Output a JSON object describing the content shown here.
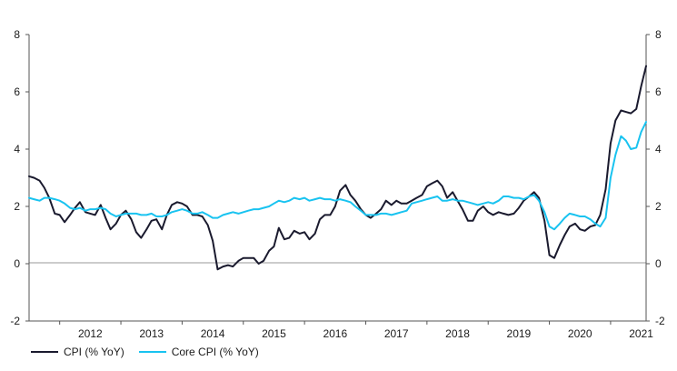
{
  "chart_data": {
    "type": "line",
    "title": "",
    "xlabel": "",
    "ylabel": "",
    "ylim": [
      -2,
      8
    ],
    "xlim": [
      2011.5,
      2021.58
    ],
    "yticks": [
      -2,
      0,
      2,
      4,
      6,
      8
    ],
    "xticks": [
      2012,
      2013,
      2014,
      2015,
      2016,
      2017,
      2018,
      2019,
      2020,
      2021
    ],
    "grid": false,
    "legend_position": "bottom-left",
    "series": [
      {
        "name": "CPI (% YoY)",
        "color": "#1a1a2e",
        "points": [
          [
            2011.5,
            3.05
          ],
          [
            2011.58,
            3.0
          ],
          [
            2011.67,
            2.9
          ],
          [
            2011.75,
            2.65
          ],
          [
            2011.83,
            2.3
          ],
          [
            2011.92,
            1.75
          ],
          [
            2012.0,
            1.7
          ],
          [
            2012.08,
            1.45
          ],
          [
            2012.17,
            1.7
          ],
          [
            2012.25,
            1.95
          ],
          [
            2012.33,
            2.15
          ],
          [
            2012.42,
            1.8
          ],
          [
            2012.5,
            1.75
          ],
          [
            2012.58,
            1.7
          ],
          [
            2012.67,
            2.05
          ],
          [
            2012.75,
            1.6
          ],
          [
            2012.83,
            1.2
          ],
          [
            2012.92,
            1.4
          ],
          [
            2013.0,
            1.7
          ],
          [
            2013.08,
            1.85
          ],
          [
            2013.17,
            1.55
          ],
          [
            2013.25,
            1.1
          ],
          [
            2013.33,
            0.9
          ],
          [
            2013.42,
            1.2
          ],
          [
            2013.5,
            1.5
          ],
          [
            2013.58,
            1.55
          ],
          [
            2013.67,
            1.2
          ],
          [
            2013.75,
            1.7
          ],
          [
            2013.83,
            2.05
          ],
          [
            2013.92,
            2.15
          ],
          [
            2014.0,
            2.1
          ],
          [
            2014.08,
            2.0
          ],
          [
            2014.17,
            1.7
          ],
          [
            2014.25,
            1.7
          ],
          [
            2014.33,
            1.65
          ],
          [
            2014.42,
            1.35
          ],
          [
            2014.5,
            0.8
          ],
          [
            2014.58,
            -0.2
          ],
          [
            2014.67,
            -0.1
          ],
          [
            2014.75,
            -0.05
          ],
          [
            2014.83,
            -0.1
          ],
          [
            2014.92,
            0.1
          ],
          [
            2015.0,
            0.2
          ],
          [
            2015.08,
            0.2
          ],
          [
            2015.17,
            0.2
          ],
          [
            2015.25,
            0.0
          ],
          [
            2015.33,
            0.1
          ],
          [
            2015.42,
            0.45
          ],
          [
            2015.5,
            0.6
          ],
          [
            2015.58,
            1.25
          ],
          [
            2015.67,
            0.85
          ],
          [
            2015.75,
            0.9
          ],
          [
            2015.83,
            1.15
          ],
          [
            2015.92,
            1.05
          ],
          [
            2016.0,
            1.1
          ],
          [
            2016.08,
            0.85
          ],
          [
            2016.17,
            1.05
          ],
          [
            2016.25,
            1.55
          ],
          [
            2016.33,
            1.7
          ],
          [
            2016.42,
            1.7
          ],
          [
            2016.5,
            2.0
          ],
          [
            2016.58,
            2.55
          ],
          [
            2016.67,
            2.75
          ],
          [
            2016.75,
            2.4
          ],
          [
            2016.83,
            2.2
          ],
          [
            2016.92,
            1.9
          ],
          [
            2017.0,
            1.7
          ],
          [
            2017.08,
            1.6
          ],
          [
            2017.17,
            1.75
          ],
          [
            2017.25,
            1.9
          ],
          [
            2017.33,
            2.2
          ],
          [
            2017.42,
            2.05
          ],
          [
            2017.5,
            2.2
          ],
          [
            2017.58,
            2.1
          ],
          [
            2017.67,
            2.1
          ],
          [
            2017.75,
            2.2
          ],
          [
            2017.83,
            2.3
          ],
          [
            2017.92,
            2.4
          ],
          [
            2018.0,
            2.7
          ],
          [
            2018.08,
            2.8
          ],
          [
            2018.17,
            2.9
          ],
          [
            2018.25,
            2.7
          ],
          [
            2018.33,
            2.3
          ],
          [
            2018.42,
            2.5
          ],
          [
            2018.5,
            2.2
          ],
          [
            2018.58,
            1.9
          ],
          [
            2018.67,
            1.5
          ],
          [
            2018.75,
            1.5
          ],
          [
            2018.83,
            1.85
          ],
          [
            2018.92,
            2.0
          ],
          [
            2019.0,
            1.8
          ],
          [
            2019.08,
            1.7
          ],
          [
            2019.17,
            1.8
          ],
          [
            2019.25,
            1.75
          ],
          [
            2019.33,
            1.7
          ],
          [
            2019.42,
            1.75
          ],
          [
            2019.5,
            1.95
          ],
          [
            2019.58,
            2.2
          ],
          [
            2019.67,
            2.35
          ],
          [
            2019.75,
            2.5
          ],
          [
            2019.83,
            2.3
          ],
          [
            2019.92,
            1.5
          ],
          [
            2020.0,
            0.3
          ],
          [
            2020.08,
            0.2
          ],
          [
            2020.17,
            0.65
          ],
          [
            2020.25,
            1.0
          ],
          [
            2020.33,
            1.3
          ],
          [
            2020.42,
            1.4
          ],
          [
            2020.5,
            1.2
          ],
          [
            2020.58,
            1.15
          ],
          [
            2020.67,
            1.3
          ],
          [
            2020.75,
            1.35
          ],
          [
            2020.83,
            1.7
          ],
          [
            2020.92,
            2.6
          ],
          [
            2021.0,
            4.2
          ],
          [
            2021.08,
            5.0
          ],
          [
            2021.17,
            5.35
          ],
          [
            2021.25,
            5.3
          ],
          [
            2021.33,
            5.25
          ],
          [
            2021.42,
            5.4
          ],
          [
            2021.5,
            6.2
          ],
          [
            2021.58,
            6.9
          ]
        ]
      },
      {
        "name": "Core CPI (% YoY)",
        "color": "#19c3f0",
        "points": [
          [
            2011.5,
            2.3
          ],
          [
            2011.58,
            2.25
          ],
          [
            2011.67,
            2.2
          ],
          [
            2011.75,
            2.3
          ],
          [
            2011.83,
            2.3
          ],
          [
            2011.92,
            2.25
          ],
          [
            2012.0,
            2.2
          ],
          [
            2012.08,
            2.1
          ],
          [
            2012.17,
            1.95
          ],
          [
            2012.25,
            1.9
          ],
          [
            2012.33,
            1.95
          ],
          [
            2012.42,
            1.85
          ],
          [
            2012.5,
            1.9
          ],
          [
            2012.58,
            1.9
          ],
          [
            2012.67,
            1.95
          ],
          [
            2012.75,
            1.9
          ],
          [
            2012.83,
            1.75
          ],
          [
            2012.92,
            1.65
          ],
          [
            2013.0,
            1.7
          ],
          [
            2013.08,
            1.75
          ],
          [
            2013.17,
            1.75
          ],
          [
            2013.25,
            1.75
          ],
          [
            2013.33,
            1.7
          ],
          [
            2013.42,
            1.7
          ],
          [
            2013.5,
            1.75
          ],
          [
            2013.58,
            1.65
          ],
          [
            2013.67,
            1.65
          ],
          [
            2013.75,
            1.7
          ],
          [
            2013.83,
            1.8
          ],
          [
            2013.92,
            1.85
          ],
          [
            2014.0,
            1.9
          ],
          [
            2014.08,
            1.85
          ],
          [
            2014.17,
            1.75
          ],
          [
            2014.25,
            1.75
          ],
          [
            2014.33,
            1.8
          ],
          [
            2014.42,
            1.7
          ],
          [
            2014.5,
            1.6
          ],
          [
            2014.58,
            1.6
          ],
          [
            2014.67,
            1.7
          ],
          [
            2014.75,
            1.75
          ],
          [
            2014.83,
            1.8
          ],
          [
            2014.92,
            1.75
          ],
          [
            2015.0,
            1.8
          ],
          [
            2015.08,
            1.85
          ],
          [
            2015.17,
            1.9
          ],
          [
            2015.25,
            1.9
          ],
          [
            2015.33,
            1.95
          ],
          [
            2015.42,
            2.0
          ],
          [
            2015.5,
            2.1
          ],
          [
            2015.58,
            2.2
          ],
          [
            2015.67,
            2.15
          ],
          [
            2015.75,
            2.2
          ],
          [
            2015.83,
            2.3
          ],
          [
            2015.92,
            2.25
          ],
          [
            2016.0,
            2.3
          ],
          [
            2016.08,
            2.2
          ],
          [
            2016.17,
            2.25
          ],
          [
            2016.25,
            2.3
          ],
          [
            2016.33,
            2.25
          ],
          [
            2016.42,
            2.25
          ],
          [
            2016.5,
            2.2
          ],
          [
            2016.58,
            2.25
          ],
          [
            2016.67,
            2.2
          ],
          [
            2016.75,
            2.15
          ],
          [
            2016.83,
            2.0
          ],
          [
            2016.92,
            1.85
          ],
          [
            2017.0,
            1.7
          ],
          [
            2017.08,
            1.7
          ],
          [
            2017.17,
            1.7
          ],
          [
            2017.25,
            1.75
          ],
          [
            2017.33,
            1.75
          ],
          [
            2017.42,
            1.7
          ],
          [
            2017.5,
            1.75
          ],
          [
            2017.58,
            1.8
          ],
          [
            2017.67,
            1.85
          ],
          [
            2017.75,
            2.1
          ],
          [
            2017.83,
            2.15
          ],
          [
            2017.92,
            2.2
          ],
          [
            2018.0,
            2.25
          ],
          [
            2018.08,
            2.3
          ],
          [
            2018.17,
            2.35
          ],
          [
            2018.25,
            2.2
          ],
          [
            2018.33,
            2.2
          ],
          [
            2018.42,
            2.25
          ],
          [
            2018.5,
            2.2
          ],
          [
            2018.58,
            2.2
          ],
          [
            2018.67,
            2.15
          ],
          [
            2018.75,
            2.1
          ],
          [
            2018.83,
            2.05
          ],
          [
            2018.92,
            2.1
          ],
          [
            2019.0,
            2.15
          ],
          [
            2019.08,
            2.1
          ],
          [
            2019.17,
            2.2
          ],
          [
            2019.25,
            2.35
          ],
          [
            2019.33,
            2.35
          ],
          [
            2019.42,
            2.3
          ],
          [
            2019.5,
            2.3
          ],
          [
            2019.58,
            2.25
          ],
          [
            2019.67,
            2.35
          ],
          [
            2019.75,
            2.4
          ],
          [
            2019.83,
            2.2
          ],
          [
            2019.92,
            1.8
          ],
          [
            2020.0,
            1.3
          ],
          [
            2020.08,
            1.2
          ],
          [
            2020.17,
            1.4
          ],
          [
            2020.25,
            1.6
          ],
          [
            2020.33,
            1.75
          ],
          [
            2020.42,
            1.7
          ],
          [
            2020.5,
            1.65
          ],
          [
            2020.58,
            1.65
          ],
          [
            2020.67,
            1.55
          ],
          [
            2020.75,
            1.4
          ],
          [
            2020.83,
            1.3
          ],
          [
            2020.92,
            1.6
          ],
          [
            2021.0,
            3.0
          ],
          [
            2021.08,
            3.8
          ],
          [
            2021.17,
            4.45
          ],
          [
            2021.25,
            4.3
          ],
          [
            2021.33,
            4.0
          ],
          [
            2021.42,
            4.05
          ],
          [
            2021.5,
            4.6
          ],
          [
            2021.58,
            4.95
          ]
        ]
      }
    ]
  }
}
